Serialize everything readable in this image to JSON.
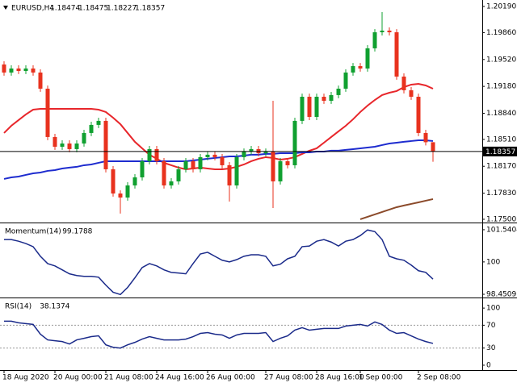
{
  "chart_data": [
    {
      "type": "candlestick",
      "symbol": "EURUSD,H4",
      "categories": [
        "18 Aug 2020",
        null,
        null,
        null,
        null,
        null,
        null,
        "20 Aug 00:00",
        null,
        null,
        null,
        null,
        null,
        null,
        "21 Aug 08:00",
        null,
        null,
        null,
        null,
        null,
        null,
        "24 Aug 16:00",
        null,
        null,
        null,
        null,
        null,
        null,
        "26 Aug 00:00",
        null,
        null,
        null,
        null,
        null,
        null,
        null,
        "27 Aug 08:00",
        null,
        null,
        null,
        null,
        null,
        null,
        "28 Aug 16:00",
        null,
        null,
        null,
        null,
        null,
        "1 Sep 00:00",
        null,
        null,
        null,
        null,
        null,
        null,
        null,
        "2 Sep 08:00",
        null,
        null
      ],
      "open": [
        1.19457,
        1.19355,
        1.19406,
        1.19375,
        1.19406,
        1.19355,
        1.19151,
        1.1854,
        1.18417,
        1.18458,
        1.18387,
        1.18458,
        1.18591,
        1.18693,
        1.18744,
        1.18132,
        1.17826,
        1.17775,
        1.17928,
        1.1803,
        1.18234,
        1.18387,
        1.18234,
        1.17928,
        1.17979,
        1.18132,
        1.18234,
        1.18132,
        1.18285,
        1.18316,
        1.18285,
        1.18183,
        1.17928,
        1.18285,
        1.18356,
        1.18387,
        1.18336,
        1.18356,
        1.17979,
        1.18234,
        1.18183,
        1.18744,
        1.19049,
        1.18794,
        1.19049,
        1.18998,
        1.1907,
        1.19151,
        1.19355,
        1.19436,
        1.19406,
        1.19661,
        1.19864,
        1.19885,
        1.19864,
        1.19304,
        1.19131,
        1.19049,
        1.18591,
        1.18474
      ],
      "high": [
        1.19497,
        1.19446,
        1.19446,
        1.19446,
        1.19446,
        1.19395,
        1.19191,
        1.1858,
        1.18498,
        1.18498,
        1.18498,
        1.18631,
        1.18733,
        1.18784,
        1.18784,
        1.18172,
        1.17866,
        1.17968,
        1.1807,
        1.18274,
        1.18427,
        1.18427,
        1.18274,
        1.18019,
        1.18172,
        1.18274,
        1.18274,
        1.18325,
        1.18356,
        1.18356,
        1.18325,
        1.18223,
        1.18325,
        1.18396,
        1.18427,
        1.18427,
        1.18396,
        1.18998,
        1.18274,
        1.18274,
        1.18784,
        1.19089,
        1.19089,
        1.19089,
        1.19089,
        1.1911,
        1.19191,
        1.19395,
        1.19476,
        1.19476,
        1.19701,
        1.19904,
        1.20119,
        1.19925,
        1.19904,
        1.19344,
        1.19171,
        1.19089,
        1.18631,
        1.18475
      ],
      "low": [
        1.19315,
        1.19315,
        1.19335,
        1.19335,
        1.19315,
        1.19111,
        1.185,
        1.18377,
        1.18377,
        1.18347,
        1.18347,
        1.18418,
        1.18551,
        1.18653,
        1.18092,
        1.17786,
        1.17572,
        1.17735,
        1.17888,
        1.1799,
        1.18194,
        1.18194,
        1.17888,
        1.17888,
        1.17939,
        1.18092,
        1.18092,
        1.18092,
        1.18245,
        1.18245,
        1.18143,
        1.17724,
        1.17888,
        1.18245,
        1.18316,
        1.18296,
        1.18296,
        1.17643,
        1.17939,
        1.18143,
        1.18143,
        1.18704,
        1.18754,
        1.18754,
        1.18958,
        1.18958,
        1.1903,
        1.19111,
        1.19315,
        1.19366,
        1.19366,
        1.19621,
        1.19824,
        1.19824,
        1.19264,
        1.19091,
        1.19009,
        1.18551,
        1.18434,
        1.18227
      ],
      "close": [
        1.19355,
        1.19406,
        1.19375,
        1.19406,
        1.19355,
        1.19151,
        1.1854,
        1.18417,
        1.18458,
        1.18387,
        1.18458,
        1.18591,
        1.18693,
        1.18744,
        1.18132,
        1.17826,
        1.17775,
        1.17928,
        1.1803,
        1.18234,
        1.18387,
        1.18234,
        1.17928,
        1.17979,
        1.18132,
        1.18234,
        1.18132,
        1.18285,
        1.18316,
        1.18285,
        1.18183,
        1.17928,
        1.18285,
        1.18356,
        1.18387,
        1.18336,
        1.18356,
        1.17979,
        1.18234,
        1.18183,
        1.18744,
        1.19049,
        1.18794,
        1.19049,
        1.18998,
        1.1907,
        1.19151,
        1.19355,
        1.19436,
        1.19406,
        1.19661,
        1.19864,
        1.19885,
        1.19864,
        1.19304,
        1.19131,
        1.19049,
        1.18591,
        1.18474,
        1.18357
      ],
      "up_color": "#10a030",
      "down_color": "#e8321e",
      "price_line_color": "#000000",
      "lines": [
        {
          "color": "#e8262b",
          "values": [
            1.18591,
            1.18682,
            1.18754,
            1.18825,
            1.18886,
            1.18896,
            1.18896,
            1.18896,
            1.18896,
            1.18896,
            1.18896,
            1.18896,
            1.18896,
            1.18886,
            1.18856,
            1.18784,
            1.18703,
            1.18591,
            1.18479,
            1.18397,
            1.18316,
            1.18265,
            1.18214,
            1.18183,
            1.18153,
            1.18132,
            1.18142,
            1.18153,
            1.18142,
            1.18132,
            1.18132,
            1.18142,
            1.18163,
            1.18193,
            1.18234,
            1.18265,
            1.18285,
            1.18275,
            1.18254,
            1.18265,
            1.18285,
            1.18326,
            1.18367,
            1.18397,
            1.18468,
            1.1854,
            1.18611,
            1.18682,
            1.18764,
            1.18856,
            1.18937,
            1.19008,
            1.1907,
            1.191,
            1.19121,
            1.19171,
            1.19202,
            1.19212,
            1.19192,
            1.19151
          ]
        },
        {
          "color": "#1e2ccf",
          "values": [
            1.1801,
            1.1803,
            1.1804,
            1.18061,
            1.18081,
            1.18091,
            1.18112,
            1.18122,
            1.18142,
            1.18153,
            1.18163,
            1.18183,
            1.18193,
            1.18214,
            1.18234,
            1.18234,
            1.18234,
            1.18234,
            1.18234,
            1.18234,
            1.18234,
            1.18234,
            1.18234,
            1.18234,
            1.18234,
            1.18234,
            1.18244,
            1.18254,
            1.18265,
            1.18275,
            1.18285,
            1.18295,
            1.18295,
            1.18305,
            1.18316,
            1.18316,
            1.18326,
            1.18326,
            1.18336,
            1.18336,
            1.18336,
            1.18346,
            1.18346,
            1.18356,
            1.18356,
            1.18367,
            1.18367,
            1.18377,
            1.18387,
            1.18397,
            1.18407,
            1.18417,
            1.18438,
            1.18458,
            1.18468,
            1.18479,
            1.18489,
            1.18499,
            1.18499,
            1.18489
          ]
        },
        {
          "color": "#8b4a2a",
          "values": [
            null,
            null,
            null,
            null,
            null,
            null,
            null,
            null,
            null,
            null,
            null,
            null,
            null,
            null,
            null,
            null,
            null,
            null,
            null,
            null,
            null,
            null,
            null,
            null,
            null,
            null,
            null,
            null,
            null,
            null,
            null,
            null,
            null,
            null,
            null,
            null,
            null,
            null,
            null,
            null,
            null,
            null,
            null,
            null,
            null,
            null,
            null,
            null,
            null,
            1.175,
            1.17531,
            1.17562,
            1.17592,
            1.17623,
            1.17653,
            1.17674,
            1.17694,
            1.17714,
            1.17735,
            1.17755
          ]
        }
      ],
      "ylim": [
        1.17459,
        1.20272
      ],
      "yticks": [
        {
          "value": 1.2019,
          "label": "1.20190"
        },
        {
          "value": 1.1986,
          "label": "1.19860"
        },
        {
          "value": 1.1952,
          "label": "1.19520"
        },
        {
          "value": 1.1918,
          "label": "1.19180"
        },
        {
          "value": 1.1884,
          "label": "1.18840"
        },
        {
          "value": 1.1851,
          "label": "1.18510"
        },
        {
          "value": 1.1817,
          "label": "1.18170"
        },
        {
          "value": 1.1783,
          "label": "1.17830"
        },
        {
          "value": 1.175,
          "label": "1.17500"
        }
      ]
    },
    {
      "type": "line",
      "title": "Momentum(14)",
      "color": "#1a2a8a",
      "values": [
        101.07,
        101.07,
        100.99,
        100.88,
        100.73,
        100.27,
        99.92,
        99.81,
        99.62,
        99.43,
        99.35,
        99.31,
        99.31,
        99.27,
        98.89,
        98.55,
        98.44,
        98.78,
        99.24,
        99.73,
        99.92,
        99.81,
        99.62,
        99.5,
        99.47,
        99.43,
        99.92,
        100.38,
        100.46,
        100.27,
        100.08,
        100.0,
        100.11,
        100.27,
        100.34,
        100.34,
        100.27,
        99.81,
        99.89,
        100.15,
        100.27,
        100.73,
        100.76,
        100.99,
        101.07,
        100.95,
        100.76,
        100.99,
        101.07,
        101.26,
        101.53,
        101.45,
        101.07,
        100.27,
        100.15,
        100.08,
        99.85,
        99.58,
        99.5,
        99.1788
      ],
      "ylim": [
        98.336,
        101.808
      ],
      "yticks": [
        101.5404,
        100,
        98.4509
      ]
    },
    {
      "type": "line",
      "title": "RSI(14)",
      "color": "#1a2a8a",
      "values": [
        77.1,
        77.1,
        74.3,
        72.9,
        71.4,
        54.3,
        44.3,
        42.9,
        41.4,
        37.1,
        44.3,
        47.1,
        50.0,
        51.4,
        35.7,
        31.4,
        30.0,
        35.7,
        40.0,
        45.7,
        50.0,
        47.1,
        44.3,
        44.3,
        44.3,
        45.7,
        50.0,
        55.7,
        57.1,
        54.3,
        52.9,
        47.1,
        52.9,
        55.7,
        55.7,
        55.7,
        57.1,
        41.4,
        47.1,
        51.4,
        61.4,
        65.7,
        61.4,
        62.9,
        64.3,
        64.3,
        64.3,
        68.6,
        70.0,
        71.4,
        68.6,
        75.7,
        71.4,
        61.4,
        55.7,
        57.1,
        51.4,
        45.7,
        41.4,
        38.1374
      ],
      "levels": [
        70,
        30
      ],
      "ylim": [
        -7.1,
        115.7
      ],
      "yticks": [
        100,
        70,
        30,
        0
      ]
    }
  ]
}
